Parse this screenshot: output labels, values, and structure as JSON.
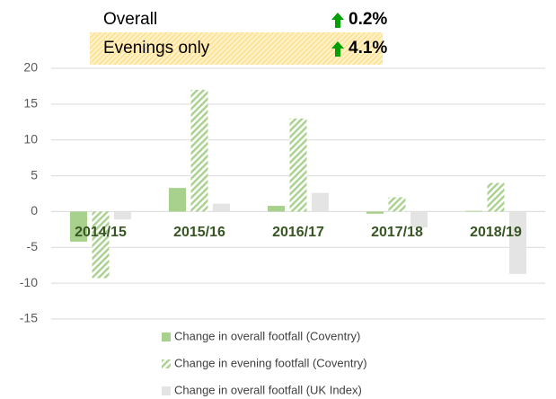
{
  "annotations": [
    {
      "label": "Overall",
      "value": "0.2%"
    },
    {
      "label": "Evenings only",
      "value": "4.1%"
    }
  ],
  "chart_data": {
    "type": "bar",
    "categories": [
      "2014/15",
      "2015/16",
      "2016/17",
      "2017/18",
      "2018/19"
    ],
    "series": [
      {
        "name": "Change in overall footfall (Coventry)",
        "color": "#a9d18e",
        "values": [
          -4.2,
          3.3,
          0.8,
          -0.3,
          0.1
        ]
      },
      {
        "name": "Change in evening footfall (Coventry)",
        "color": "#a9d18e",
        "hatch": true,
        "values": [
          -9.3,
          17,
          13,
          2,
          4
        ]
      },
      {
        "name": "Change in overall footfall (UK Index)",
        "color": "#e4e4e4",
        "values": [
          -1.1,
          1.1,
          2.6,
          -2.2,
          -8.7
        ]
      }
    ],
    "ylim": [
      -15,
      20
    ],
    "yticks": [
      20,
      15,
      10,
      5,
      0,
      -5,
      -10,
      -15
    ],
    "grid": true
  }
}
